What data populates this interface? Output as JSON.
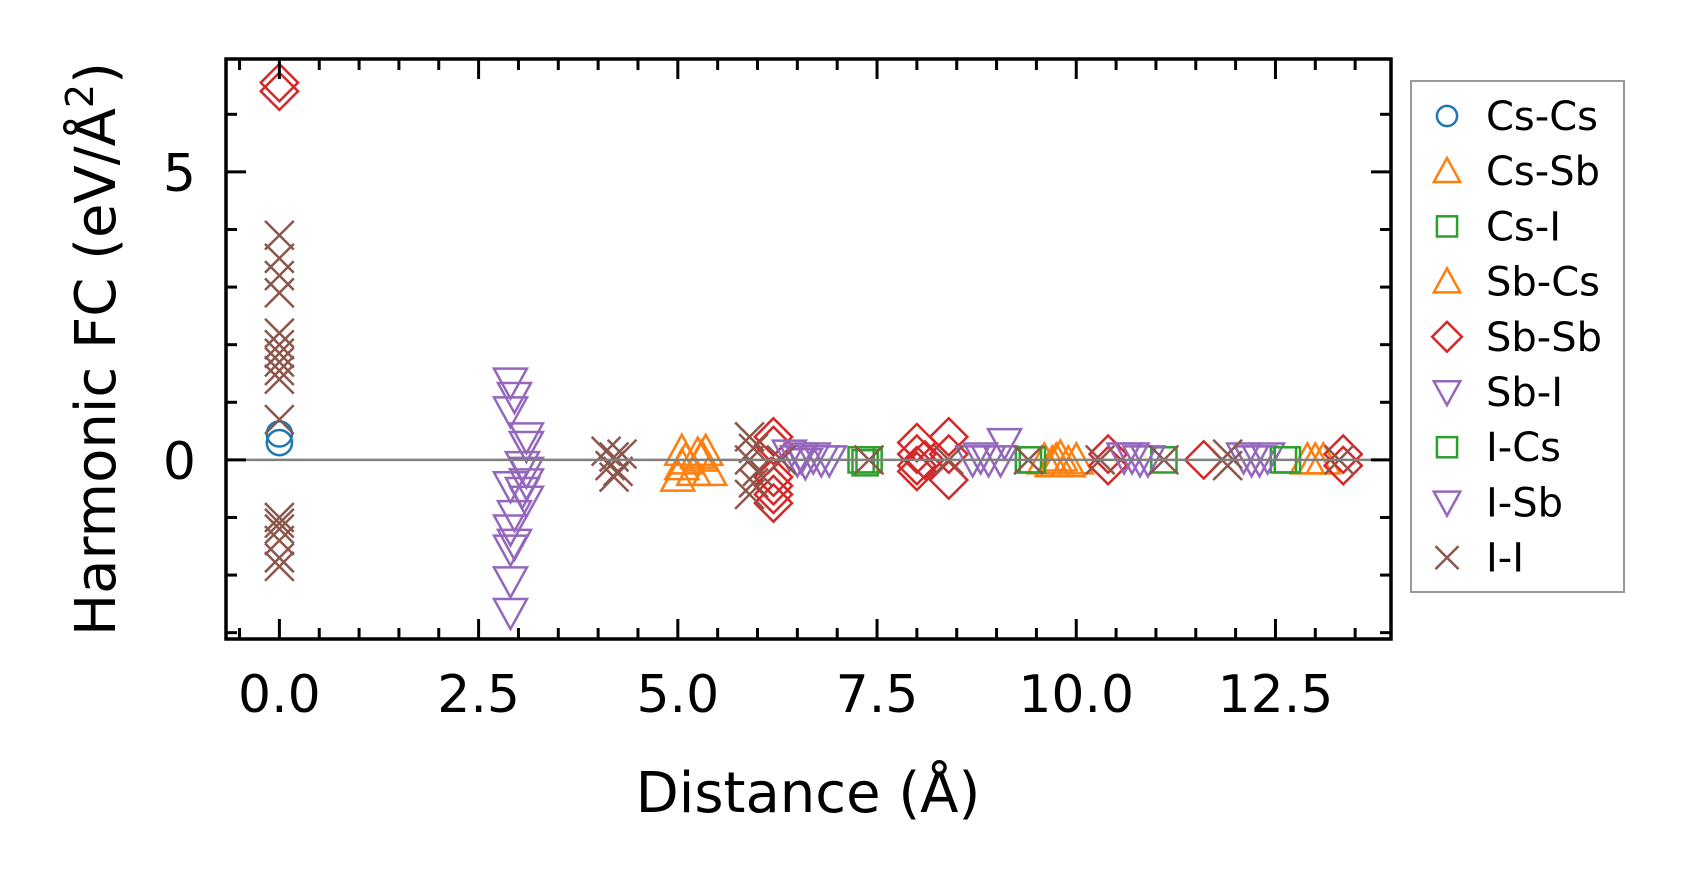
{
  "chart_data": {
    "type": "scatter",
    "xlabel": "Distance (Å)",
    "ylabel": "Harmonic FC (eV/Å²)",
    "ylabel_main": "Harmonic FC (eV/Å",
    "ylabel_sup": "2",
    "ylabel_end": ")",
    "xlim": [
      -0.67,
      13.95
    ],
    "ylim": [
      -3.11,
      6.96
    ],
    "xticks": [
      0.0,
      2.5,
      5.0,
      7.5,
      10.0,
      12.5
    ],
    "xtick_labels": [
      "0.0",
      "2.5",
      "5.0",
      "7.5",
      "10.0",
      "12.5"
    ],
    "yticks": [
      0,
      5
    ],
    "ytick_labels": [
      "0",
      "5"
    ],
    "zero_line": true,
    "grid": false,
    "legend_position": "outside-right",
    "series": [
      {
        "name": "Cs-Cs",
        "marker": "circle",
        "color": "#1f77b4",
        "points": [
          [
            0,
            0.3
          ],
          [
            0,
            0.45
          ]
        ]
      },
      {
        "name": "Cs-Sb",
        "marker": "triangle-up",
        "color": "#ff7f0e",
        "points": [
          [
            5.0,
            -0.3
          ],
          [
            5.05,
            0.15
          ],
          [
            5.1,
            0
          ],
          [
            5.2,
            -0.2
          ],
          [
            5.25,
            0.1
          ],
          [
            5.35,
            0.15
          ],
          [
            5.4,
            -0.2
          ],
          [
            9.6,
            0
          ],
          [
            9.7,
            -0.05
          ],
          [
            9.8,
            0.05
          ],
          [
            9.9,
            -0.05
          ],
          [
            10.0,
            0
          ],
          [
            12.9,
            0
          ],
          [
            13.1,
            0
          ]
        ]
      },
      {
        "name": "Cs-I",
        "marker": "square",
        "color": "#2ca02c",
        "points": [
          [
            7.3,
            0
          ],
          [
            7.35,
            -0.05
          ],
          [
            9.4,
            0
          ],
          [
            11.1,
            0
          ],
          [
            12.6,
            0
          ]
        ]
      },
      {
        "name": "Sb-Cs",
        "marker": "triangle-up",
        "color": "#ff7f0e",
        "points": [
          [
            5.05,
            -0.1
          ],
          [
            5.3,
            0.05
          ],
          [
            9.75,
            0
          ],
          [
            13.0,
            0
          ]
        ]
      },
      {
        "name": "Sb-Sb",
        "marker": "diamond",
        "color": "#d62728",
        "points": [
          [
            0,
            6.4
          ],
          [
            0,
            6.55
          ],
          [
            6.2,
            0.4
          ],
          [
            6.2,
            0.25
          ],
          [
            6.2,
            -0.3
          ],
          [
            6.2,
            -0.45
          ],
          [
            6.2,
            -0.6
          ],
          [
            6.2,
            -0.75
          ],
          [
            8.0,
            0.3
          ],
          [
            8.0,
            0.1
          ],
          [
            8.0,
            -0.1
          ],
          [
            8.0,
            -0.2
          ],
          [
            8.1,
            0
          ],
          [
            8.4,
            0.4
          ],
          [
            8.4,
            0.1
          ],
          [
            8.4,
            -0.35
          ],
          [
            10.4,
            0.1
          ],
          [
            10.4,
            -0.1
          ],
          [
            11.6,
            0
          ],
          [
            13.35,
            0.1
          ],
          [
            13.35,
            -0.1
          ]
        ]
      },
      {
        "name": "Sb-I",
        "marker": "triangle-down",
        "color": "#9467bd",
        "points": [
          [
            2.9,
            1.35
          ],
          [
            2.95,
            1.1
          ],
          [
            2.9,
            0.85
          ],
          [
            2.9,
            -0.45
          ],
          [
            2.95,
            -0.95
          ],
          [
            2.9,
            -1.2
          ],
          [
            2.95,
            -1.45
          ],
          [
            2.9,
            -1.55
          ],
          [
            2.9,
            -2.1
          ],
          [
            2.9,
            -2.65
          ],
          [
            3.1,
            0.4
          ],
          [
            3.1,
            0.25
          ],
          [
            3.05,
            -0.1
          ],
          [
            3.1,
            -0.2
          ],
          [
            3.1,
            -0.4
          ],
          [
            3.05,
            -0.55
          ],
          [
            3.1,
            -0.7
          ],
          [
            6.4,
            0.1
          ],
          [
            6.5,
            0
          ],
          [
            6.6,
            -0.05
          ],
          [
            6.7,
            0.05
          ],
          [
            6.8,
            0
          ],
          [
            6.9,
            0
          ],
          [
            8.7,
            0
          ],
          [
            8.9,
            0
          ],
          [
            9.1,
            0.3
          ],
          [
            9.05,
            0
          ],
          [
            10.6,
            0.05
          ],
          [
            10.8,
            0
          ],
          [
            10.9,
            0
          ],
          [
            12.1,
            0.05
          ],
          [
            12.3,
            0
          ],
          [
            12.4,
            0.05
          ]
        ]
      },
      {
        "name": "I-Cs",
        "marker": "square",
        "color": "#2ca02c",
        "points": [
          [
            7.4,
            0
          ],
          [
            9.45,
            0
          ],
          [
            12.65,
            0
          ]
        ]
      },
      {
        "name": "I-Sb",
        "marker": "triangle-down",
        "color": "#9467bd",
        "points": [
          [
            6.55,
            0.05
          ],
          [
            8.8,
            0.05
          ],
          [
            10.7,
            0.05
          ],
          [
            12.2,
            0
          ]
        ]
      },
      {
        "name": "I-I",
        "marker": "x",
        "color": "#8c564b",
        "points": [
          [
            0,
            3.9
          ],
          [
            0,
            3.5
          ],
          [
            0,
            3.2
          ],
          [
            0,
            2.9
          ],
          [
            0,
            2.2
          ],
          [
            0,
            2.0
          ],
          [
            0,
            1.85
          ],
          [
            0,
            1.7
          ],
          [
            0,
            1.55
          ],
          [
            0,
            1.4
          ],
          [
            0,
            0.7
          ],
          [
            0,
            -1.0
          ],
          [
            0,
            -1.1
          ],
          [
            0,
            -1.2
          ],
          [
            0,
            -1.4
          ],
          [
            0,
            -1.7
          ],
          [
            0,
            -1.85
          ],
          [
            4.1,
            0.15
          ],
          [
            4.15,
            -0.1
          ],
          [
            4.2,
            0.05
          ],
          [
            4.25,
            -0.2
          ],
          [
            4.3,
            0.1
          ],
          [
            4.2,
            -0.3
          ],
          [
            5.9,
            0.4
          ],
          [
            5.95,
            0.2
          ],
          [
            5.9,
            0
          ],
          [
            6.0,
            -0.2
          ],
          [
            5.95,
            -0.4
          ],
          [
            5.9,
            -0.6
          ],
          [
            6.3,
            0
          ],
          [
            7.4,
            0
          ],
          [
            8.4,
            0
          ],
          [
            9.4,
            0
          ],
          [
            10.3,
            0
          ],
          [
            11.1,
            0
          ],
          [
            11.9,
            0.1
          ],
          [
            11.9,
            -0.1
          ],
          [
            13.3,
            0
          ]
        ]
      }
    ]
  }
}
